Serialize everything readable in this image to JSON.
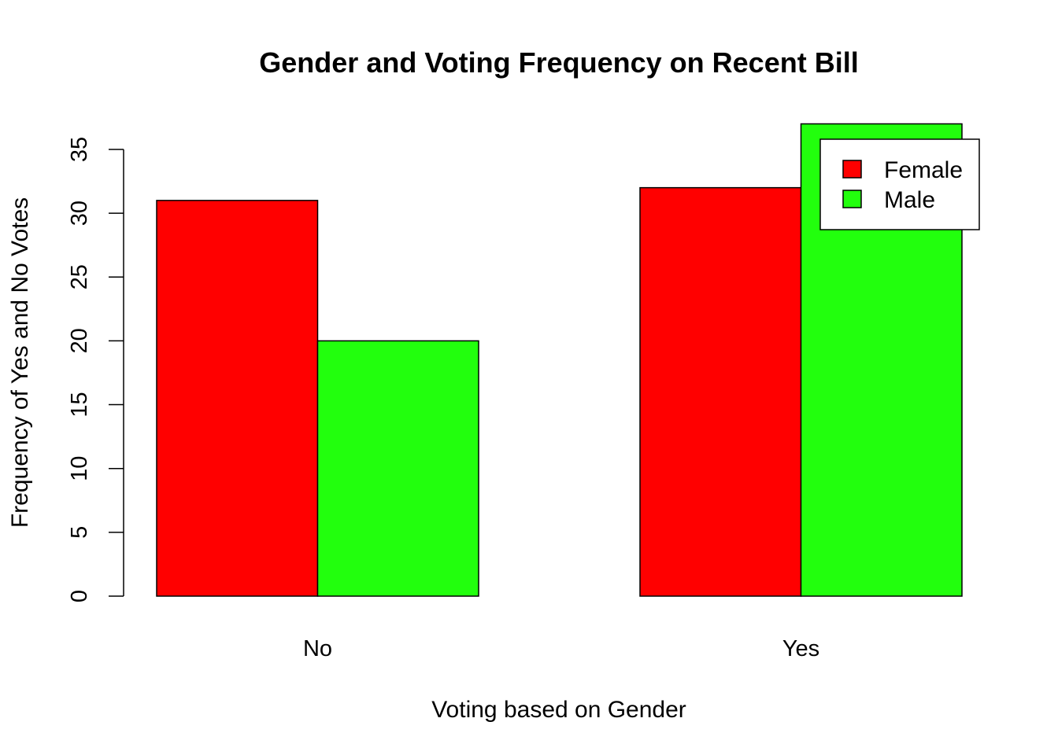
{
  "chart_data": {
    "type": "bar",
    "title": "Gender and Voting Frequency on Recent Bill",
    "xlabel": "Voting based on Gender",
    "ylabel": "Frequency of Yes and No Votes",
    "categories": [
      "No",
      "Yes"
    ],
    "series": [
      {
        "name": "Female",
        "values": [
          31,
          32
        ],
        "color": "#FF0000"
      },
      {
        "name": "Male",
        "values": [
          20,
          37
        ],
        "color": "#22FF0D"
      }
    ],
    "yticks": [
      0,
      5,
      10,
      15,
      20,
      25,
      30,
      35
    ],
    "ylim": [
      0,
      37
    ],
    "grid": false,
    "legend_position": "top-right",
    "grouping": "side-by-side"
  }
}
